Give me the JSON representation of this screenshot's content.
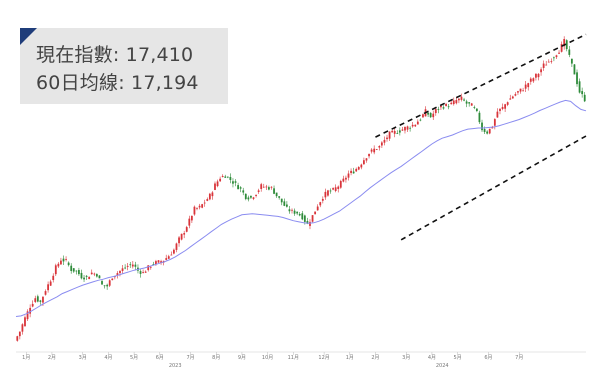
{
  "info": {
    "current_label": "現在指數",
    "current_value": "17,410",
    "ma_label": "60日均線",
    "ma_value": "17,194"
  },
  "colors": {
    "up": "#d9343a",
    "down": "#2e8b3a",
    "ma": "#8a8cf0",
    "channel": "#111111",
    "corner": "#1f3d7a"
  },
  "chart_data": {
    "type": "line",
    "series": [
      {
        "name": "",
        "role": "index",
        "values": [
          12870,
          13050,
          13300,
          13520,
          13680,
          13600,
          13830,
          14020,
          14250,
          14400,
          14370,
          14210,
          14180,
          14080,
          14060,
          14150,
          14120,
          13920,
          13900,
          14080,
          14150,
          14220,
          14280,
          14310,
          14190,
          14150,
          14250,
          14330,
          14350,
          14390,
          14470,
          14580,
          14780,
          14930,
          15130,
          15350,
          15380,
          15480,
          15600,
          15800,
          15940,
          15980,
          15900,
          15810,
          15720,
          15580,
          15560,
          15650,
          15780,
          15760,
          15740,
          15600,
          15480,
          15350,
          15300,
          15280,
          15200,
          15060,
          15220,
          15420,
          15580,
          15680,
          15700,
          15780,
          15890,
          16010,
          16060,
          16150,
          16280,
          16400,
          16470,
          16520,
          16640,
          16760,
          16790,
          16820,
          16870,
          16900,
          16950,
          17050,
          17180,
          17080,
          17200,
          17270,
          17290,
          17320,
          17390,
          17420,
          17330,
          17290,
          17150,
          16850,
          16790,
          16900,
          17180,
          17250,
          17380,
          17470,
          17550,
          17610,
          17720,
          17810,
          17900,
          18050,
          18120,
          18220,
          18330,
          18500,
          18200,
          17900,
          17550,
          17410
        ]
      },
      {
        "name": "",
        "role": "ma60",
        "values": [
          13330,
          13340,
          13380,
          13430,
          13490,
          13550,
          13600,
          13650,
          13700,
          13760,
          13800,
          13840,
          13880,
          13920,
          13950,
          13980,
          14010,
          14030,
          14060,
          14080,
          14110,
          14140,
          14170,
          14200,
          14220,
          14240,
          14270,
          14300,
          14330,
          14360,
          14400,
          14450,
          14510,
          14570,
          14640,
          14710,
          14780,
          14850,
          14920,
          14990,
          15060,
          15110,
          15160,
          15200,
          15240,
          15250,
          15260,
          15250,
          15240,
          15230,
          15220,
          15210,
          15190,
          15160,
          15130,
          15110,
          15090,
          15080,
          15090,
          15120,
          15160,
          15210,
          15260,
          15310,
          15380,
          15450,
          15520,
          15590,
          15670,
          15750,
          15820,
          15890,
          15960,
          16030,
          16090,
          16150,
          16220,
          16290,
          16360,
          16430,
          16500,
          16570,
          16630,
          16680,
          16710,
          16740,
          16780,
          16820,
          16850,
          16860,
          16870,
          16870,
          16880,
          16890,
          16910,
          16940,
          16970,
          17000,
          17030,
          17070,
          17110,
          17150,
          17200,
          17240,
          17280,
          17320,
          17360,
          17390,
          17370,
          17290,
          17220,
          17194
        ]
      }
    ],
    "channel_upper": {
      "x": [
        70,
        111
      ],
      "y": [
        16700,
        18630
      ]
    },
    "channel_lower": {
      "x": [
        75,
        111
      ],
      "y": [
        14770,
        16720
      ]
    },
    "x_tick_labels": [
      "1月",
      "2月",
      "3月",
      "4月",
      "5月",
      "6月",
      "7月",
      "8月",
      "9月",
      "10月",
      "11月",
      "12月",
      "1月",
      "2月",
      "3月",
      "4月",
      "5月",
      "6月",
      "7月"
    ],
    "x_tick_index": [
      2,
      7,
      13,
      18,
      23,
      28,
      34,
      39,
      44,
      49,
      54,
      60,
      65,
      70,
      76,
      81,
      86,
      92,
      98
    ],
    "year_labels": [
      "2023",
      "2024"
    ],
    "year_label_index": [
      31,
      83
    ],
    "ylim": [
      12700,
      18900
    ]
  }
}
